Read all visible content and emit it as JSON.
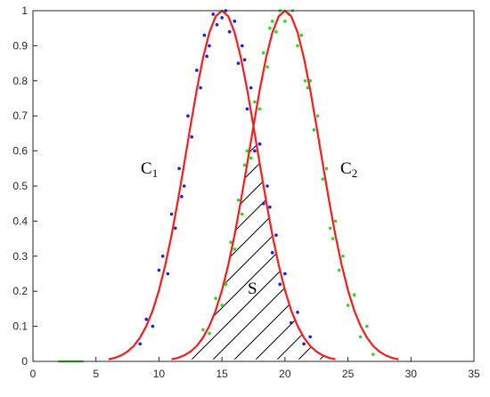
{
  "chart_data": {
    "type": "scatter",
    "xlim": [
      0,
      35
    ],
    "xticks": [
      0,
      5,
      10,
      15,
      20,
      25,
      30,
      35
    ],
    "ylim": [
      0,
      1
    ],
    "yticks": [
      0,
      0.1,
      0.2,
      0.3,
      0.4,
      0.5,
      0.6,
      0.7,
      0.8,
      0.9,
      1
    ],
    "annotations": [
      {
        "text": "C",
        "sub": "1"
      },
      {
        "text": "C",
        "sub": "2"
      },
      {
        "text": "S"
      }
    ],
    "series": [
      {
        "mode": "markers",
        "color": "#1a1aff",
        "x": [
          8.5,
          9,
          9.5,
          10,
          10.3,
          10.7,
          11,
          11.3,
          11.6,
          12,
          12.3,
          12.6,
          13,
          13.3,
          13.6,
          14,
          14.3,
          14.6,
          15,
          15.3,
          15.6,
          16,
          16.3,
          16.6,
          17,
          17.3,
          17.6,
          18,
          18.3,
          18.6,
          19,
          19.3,
          19.6,
          20,
          20.5,
          21,
          21.5,
          22,
          11.8,
          13.8,
          16.8,
          18.8
        ],
        "y": [
          0.05,
          0.12,
          0.1,
          0.26,
          0.3,
          0.25,
          0.42,
          0.38,
          0.55,
          0.5,
          0.7,
          0.64,
          0.83,
          0.78,
          0.93,
          0.9,
          0.99,
          0.96,
          0.98,
          1,
          0.94,
          0.97,
          0.85,
          0.9,
          0.72,
          0.78,
          0.6,
          0.62,
          0.45,
          0.5,
          0.31,
          0.36,
          0.22,
          0.25,
          0.11,
          0.14,
          0.05,
          0.07,
          0.47,
          0.87,
          0.86,
          0.44
        ]
      },
      {
        "mode": "markers",
        "color": "#22e022",
        "x": [
          13.5,
          14,
          14.5,
          15,
          15.3,
          15.7,
          16,
          16.3,
          16.6,
          17,
          17.3,
          17.6,
          18,
          18.3,
          18.6,
          19,
          19.3,
          19.6,
          20,
          20.3,
          20.6,
          21,
          21.3,
          21.6,
          22,
          22.3,
          22.6,
          23,
          23.3,
          23.6,
          24,
          24.3,
          24.6,
          25,
          25.5,
          26,
          26.5,
          27,
          16.8,
          18.8,
          21.8,
          23.8
        ],
        "y": [
          0.09,
          0.08,
          0.18,
          0.16,
          0.22,
          0.34,
          0.32,
          0.46,
          0.42,
          0.6,
          0.58,
          0.74,
          0.72,
          0.88,
          0.84,
          0.97,
          0.94,
          1,
          0.97,
          0.99,
          1,
          0.9,
          0.93,
          0.8,
          0.8,
          0.66,
          0.7,
          0.52,
          0.55,
          0.38,
          0.4,
          0.26,
          0.3,
          0.16,
          0.19,
          0.07,
          0.1,
          0.02,
          0.56,
          0.95,
          0.78,
          0.35
        ]
      },
      {
        "mode": "line",
        "color": "#ff1a1a",
        "x": [
          6,
          6.5,
          7,
          7.5,
          8,
          8.5,
          9,
          9.5,
          10,
          10.5,
          11,
          11.5,
          12,
          12.5,
          13,
          13.5,
          14,
          14.5,
          15,
          15.5,
          16,
          16.5,
          17,
          17.5,
          18,
          18.5,
          19,
          19.5,
          20,
          20.5,
          21,
          21.5,
          22,
          22.5,
          23,
          23.5,
          24
        ],
        "y": [
          0.006,
          0.01,
          0.017,
          0.028,
          0.044,
          0.068,
          0.101,
          0.145,
          0.203,
          0.275,
          0.36,
          0.458,
          0.563,
          0.671,
          0.775,
          0.866,
          0.938,
          0.984,
          1,
          0.984,
          0.938,
          0.866,
          0.775,
          0.671,
          0.563,
          0.458,
          0.36,
          0.275,
          0.203,
          0.145,
          0.101,
          0.068,
          0.044,
          0.028,
          0.017,
          0.01,
          0.006
        ]
      },
      {
        "mode": "line",
        "color": "#ff1a1a",
        "x": [
          11,
          11.5,
          12,
          12.5,
          13,
          13.5,
          14,
          14.5,
          15,
          15.5,
          16,
          16.5,
          17,
          17.5,
          18,
          18.5,
          19,
          19.5,
          20,
          20.5,
          21,
          21.5,
          22,
          22.5,
          23,
          23.5,
          24,
          24.5,
          25,
          25.5,
          26,
          26.5,
          27,
          27.5,
          28,
          28.5,
          29
        ],
        "y": [
          0.006,
          0.01,
          0.017,
          0.028,
          0.044,
          0.068,
          0.101,
          0.145,
          0.203,
          0.275,
          0.36,
          0.458,
          0.563,
          0.671,
          0.775,
          0.866,
          0.938,
          0.984,
          1,
          0.984,
          0.938,
          0.866,
          0.775,
          0.671,
          0.563,
          0.458,
          0.36,
          0.275,
          0.203,
          0.145,
          0.101,
          0.068,
          0.044,
          0.028,
          0.017,
          0.01,
          0.006
        ]
      },
      {
        "mode": "line",
        "color": "#33cc33",
        "x": [
          2,
          4
        ],
        "y": [
          0,
          0
        ]
      }
    ]
  }
}
